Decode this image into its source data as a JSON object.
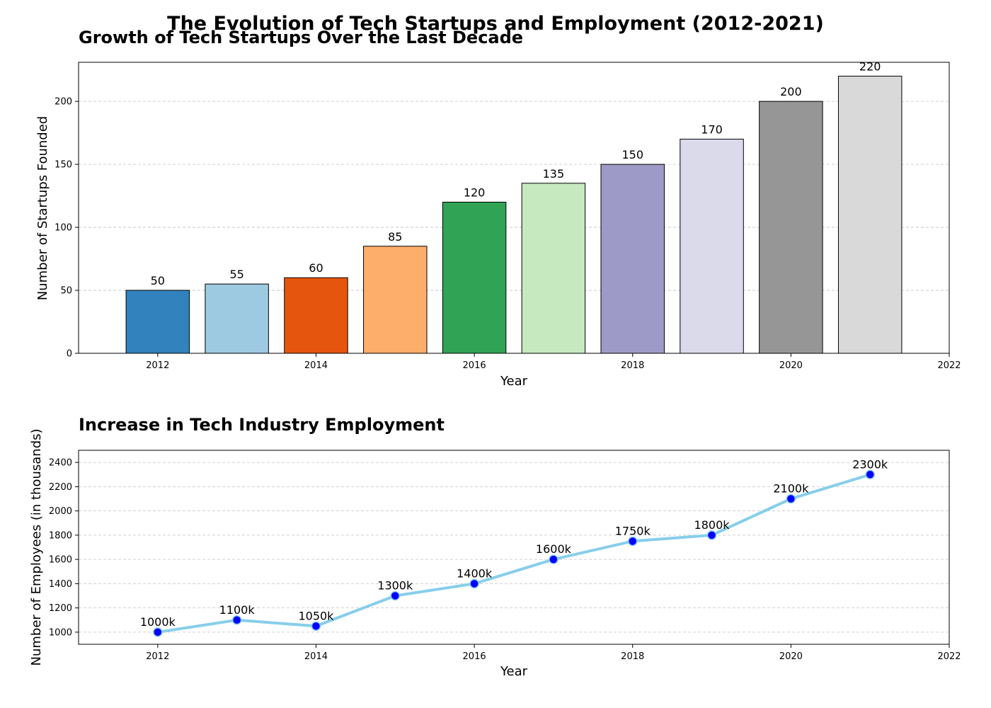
{
  "figure": {
    "title": "The Evolution of Tech Startups and Employment (2012-2021)"
  },
  "chart_data": [
    {
      "type": "bar",
      "title": "Growth of Tech Startups Over the Last Decade",
      "xlabel": "Year",
      "ylabel": "Number of Startups Founded",
      "x": [
        2012,
        2013,
        2014,
        2015,
        2016,
        2017,
        2018,
        2019,
        2020,
        2021
      ],
      "values": [
        50,
        55,
        60,
        85,
        120,
        135,
        150,
        170,
        200,
        220
      ],
      "data_labels": [
        "50",
        "55",
        "60",
        "85",
        "120",
        "135",
        "150",
        "170",
        "200",
        "220"
      ],
      "colors": [
        "#3182bd",
        "#9ecae1",
        "#e6550d",
        "#fdae6b",
        "#31a354",
        "#c7e9c0",
        "#9e9ac8",
        "#dadaeb",
        "#969696",
        "#d9d9d9"
      ],
      "xlim": [
        2011,
        2022
      ],
      "ylim": [
        0,
        231
      ],
      "xticks": [
        2012,
        2014,
        2016,
        2018,
        2020,
        2022
      ],
      "xtick_labels": [
        "2012",
        "2014",
        "2016",
        "2018",
        "2020",
        "2022"
      ],
      "yticks": [
        0,
        50,
        100,
        150,
        200
      ],
      "ytick_labels": [
        "0",
        "50",
        "100",
        "150",
        "200"
      ],
      "grid": "y-dashed"
    },
    {
      "type": "line",
      "title": "Increase in Tech Industry Employment",
      "xlabel": "Year",
      "ylabel": "Number of Employees (in thousands)",
      "x": [
        2012,
        2013,
        2014,
        2015,
        2016,
        2017,
        2018,
        2019,
        2020,
        2021
      ],
      "values": [
        1000,
        1100,
        1050,
        1300,
        1400,
        1600,
        1750,
        1800,
        2100,
        2300
      ],
      "data_labels": [
        "1000k",
        "1100k",
        "1050k",
        "1300k",
        "1400k",
        "1600k",
        "1750k",
        "1800k",
        "2100k",
        "2300k"
      ],
      "line_color": "#87ceeb",
      "marker_color": "#0000ff",
      "xlim": [
        2011,
        2022
      ],
      "ylim": [
        900,
        2500
      ],
      "xticks": [
        2012,
        2014,
        2016,
        2018,
        2020,
        2022
      ],
      "xtick_labels": [
        "2012",
        "2014",
        "2016",
        "2018",
        "2020",
        "2022"
      ],
      "yticks": [
        1000,
        1200,
        1400,
        1600,
        1800,
        2000,
        2200,
        2400
      ],
      "ytick_labels": [
        "1000",
        "1200",
        "1400",
        "1600",
        "1800",
        "2000",
        "2200",
        "2400"
      ],
      "grid": "y-dashed"
    }
  ]
}
